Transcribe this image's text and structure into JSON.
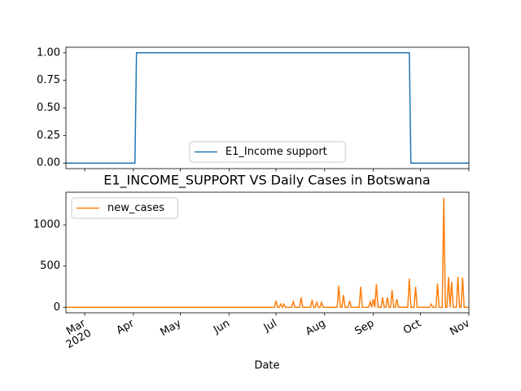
{
  "chart_data": [
    {
      "type": "line",
      "x": [
        "2020-02-18",
        "2020-04-02",
        "2020-04-03",
        "2020-09-24",
        "2020-09-25",
        "2020-11-01"
      ],
      "series": [
        {
          "name": "E1_Income support",
          "color": "#1f77b4",
          "values": [
            0,
            0,
            1,
            1,
            0,
            0
          ]
        }
      ],
      "xlim": [
        "2020-02-18",
        "2020-11-01"
      ],
      "xticks": [
        "2020-03-01",
        "2020-04-01",
        "2020-05-01",
        "2020-06-01",
        "2020-07-01",
        "2020-08-01",
        "2020-09-01",
        "2020-10-01",
        "2020-11-01"
      ],
      "ylim": [
        -0.05,
        1.05
      ],
      "yticks": [
        {
          "value": 0,
          "label": "0.00"
        },
        {
          "value": 0.25,
          "label": "0.25"
        },
        {
          "value": 0.5,
          "label": "0.50"
        },
        {
          "value": 0.75,
          "label": "0.75"
        },
        {
          "value": 1,
          "label": "1.00"
        }
      ],
      "legend": "lower center"
    },
    {
      "type": "line",
      "title": "E1_INCOME_SUPPORT VS Daily Cases in Botswana",
      "xlabel": "Date",
      "x": [
        "2020-02-18",
        "2020-06-30",
        "2020-07-01",
        "2020-07-02",
        "2020-07-03",
        "2020-07-04",
        "2020-07-05",
        "2020-07-06",
        "2020-07-07",
        "2020-07-11",
        "2020-07-12",
        "2020-07-13",
        "2020-07-16",
        "2020-07-17",
        "2020-07-18",
        "2020-07-23",
        "2020-07-24",
        "2020-07-25",
        "2020-07-26",
        "2020-07-27",
        "2020-07-28",
        "2020-07-29",
        "2020-07-30",
        "2020-07-31",
        "2020-08-09",
        "2020-08-10",
        "2020-08-11",
        "2020-08-12",
        "2020-08-13",
        "2020-08-14",
        "2020-08-16",
        "2020-08-17",
        "2020-08-18",
        "2020-08-23",
        "2020-08-24",
        "2020-08-25",
        "2020-08-29",
        "2020-08-30",
        "2020-08-31",
        "2020-09-01",
        "2020-09-02",
        "2020-09-03",
        "2020-09-04",
        "2020-09-06",
        "2020-09-07",
        "2020-09-08",
        "2020-09-09",
        "2020-09-10",
        "2020-09-11",
        "2020-09-12",
        "2020-09-13",
        "2020-09-14",
        "2020-09-15",
        "2020-09-16",
        "2020-09-17",
        "2020-09-23",
        "2020-09-24",
        "2020-09-25",
        "2020-09-27",
        "2020-09-28",
        "2020-09-29",
        "2020-10-07",
        "2020-10-08",
        "2020-10-09",
        "2020-10-11",
        "2020-10-12",
        "2020-10-13",
        "2020-10-15",
        "2020-10-16",
        "2020-10-17",
        "2020-10-18",
        "2020-10-19",
        "2020-10-20",
        "2020-10-21",
        "2020-10-22",
        "2020-10-24",
        "2020-10-25",
        "2020-10-26",
        "2020-10-27",
        "2020-10-28",
        "2020-10-29",
        "2020-11-01"
      ],
      "series": [
        {
          "name": "new_cases",
          "color": "#ff7f0e",
          "values": [
            0,
            0,
            80,
            0,
            0,
            40,
            0,
            40,
            0,
            0,
            70,
            0,
            0,
            120,
            0,
            0,
            90,
            0,
            0,
            60,
            0,
            0,
            60,
            0,
            0,
            260,
            0,
            0,
            150,
            0,
            0,
            80,
            0,
            0,
            250,
            0,
            0,
            70,
            0,
            100,
            0,
            280,
            0,
            0,
            120,
            0,
            0,
            120,
            0,
            0,
            210,
            0,
            0,
            100,
            0,
            0,
            350,
            0,
            0,
            250,
            0,
            0,
            40,
            0,
            0,
            290,
            0,
            0,
            1330,
            0,
            0,
            370,
            0,
            310,
            0,
            0,
            370,
            0,
            0,
            360,
            0,
            0
          ]
        }
      ],
      "xlim": [
        "2020-02-18",
        "2020-11-01"
      ],
      "xticks": [
        {
          "value": "2020-03-01",
          "label": "Mar"
        },
        {
          "value": "2020-04-01",
          "label": "Apr"
        },
        {
          "value": "2020-05-01",
          "label": "May"
        },
        {
          "value": "2020-06-01",
          "label": "Jun"
        },
        {
          "value": "2020-07-01",
          "label": "Jul"
        },
        {
          "value": "2020-08-01",
          "label": "Aug"
        },
        {
          "value": "2020-09-01",
          "label": "Sep"
        },
        {
          "value": "2020-10-01",
          "label": "Oct"
        },
        {
          "value": "2020-11-01",
          "label": "Nov"
        }
      ],
      "xtick_year": "2020",
      "ylim": [
        -66.5,
        1396.5
      ],
      "yticks": [
        0,
        500,
        1000
      ],
      "legend": "upper left"
    }
  ]
}
